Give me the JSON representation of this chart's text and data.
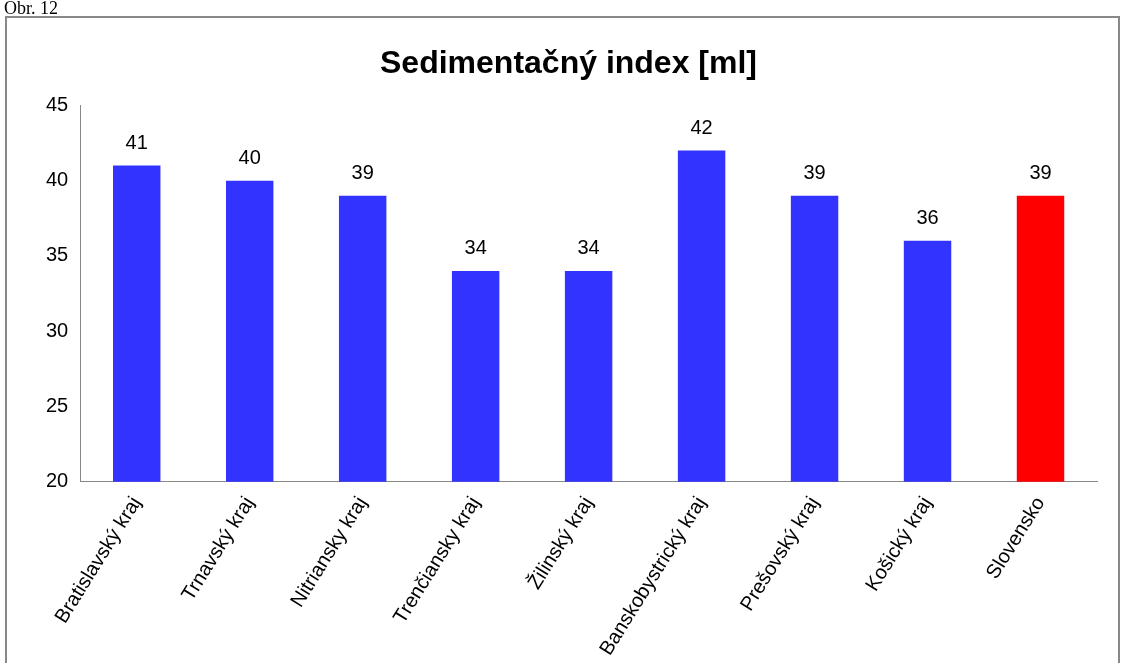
{
  "chart_data": {
    "type": "bar",
    "title": "Sedimentačný index [ml]",
    "annotations": [
      "Obr. 12"
    ],
    "categories": [
      "Bratislavský kraj",
      "Trnavský kraj",
      "Nitriansky kraj",
      "Trenčiansky kraj",
      "Žilinský kraj",
      "Banskobystrický kraj",
      "Prešovský kraj",
      "Košický kraj",
      "Slovensko"
    ],
    "values": [
      41,
      40,
      39,
      34,
      34,
      42,
      39,
      36,
      39
    ],
    "colors": [
      "#3333ff",
      "#3333ff",
      "#3333ff",
      "#3333ff",
      "#3333ff",
      "#3333ff",
      "#3333ff",
      "#3333ff",
      "#ff0000"
    ],
    "ylim": [
      20,
      45
    ],
    "yticks": [
      20,
      25,
      30,
      35,
      40,
      45
    ],
    "grid": false,
    "legend": false,
    "data_labels": true
  }
}
